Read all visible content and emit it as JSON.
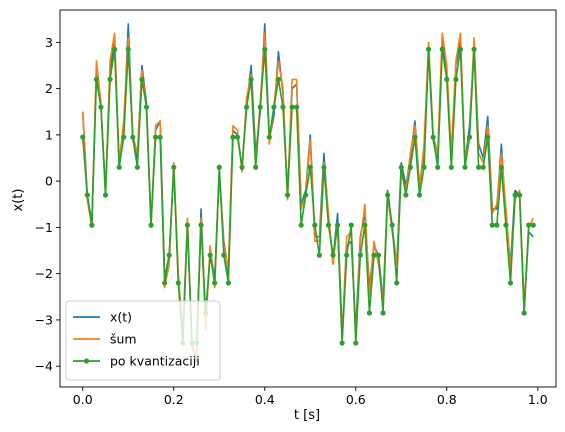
{
  "chart_data": {
    "type": "line",
    "xlabel": "t [s]",
    "ylabel": "x(t)",
    "xlim": [
      -0.05,
      1.04
    ],
    "ylim": [
      -4.45,
      3.7
    ],
    "xticks": [
      0.0,
      0.2,
      0.4,
      0.6,
      0.8,
      1.0
    ],
    "xtick_labels": [
      "0.0",
      "0.2",
      "0.4",
      "0.6",
      "0.8",
      "1.0"
    ],
    "yticks": [
      -4,
      -3,
      -2,
      -1,
      0,
      1,
      2,
      3
    ],
    "ytick_labels": [
      "−4",
      "−3",
      "−2",
      "−1",
      "0",
      "1",
      "2",
      "3"
    ],
    "grid": false,
    "legend_position": "bottom-left",
    "x": [
      0.0,
      0.01,
      0.02,
      0.03,
      0.04,
      0.05,
      0.06,
      0.07,
      0.08,
      0.09,
      0.1,
      0.11,
      0.12,
      0.13,
      0.14,
      0.15,
      0.16,
      0.17,
      0.18,
      0.19,
      0.2,
      0.21,
      0.22,
      0.23,
      0.24,
      0.25,
      0.26,
      0.27,
      0.28,
      0.29,
      0.3,
      0.31,
      0.32,
      0.33,
      0.34,
      0.35,
      0.36,
      0.37,
      0.38,
      0.39,
      0.4,
      0.41,
      0.42,
      0.43,
      0.44,
      0.45,
      0.46,
      0.47,
      0.48,
      0.49,
      0.5,
      0.51,
      0.52,
      0.53,
      0.54,
      0.55,
      0.56,
      0.57,
      0.58,
      0.59,
      0.6,
      0.61,
      0.62,
      0.63,
      0.64,
      0.65,
      0.66,
      0.67,
      0.68,
      0.69,
      0.7,
      0.71,
      0.72,
      0.73,
      0.74,
      0.75,
      0.76,
      0.77,
      0.78,
      0.79,
      0.8,
      0.81,
      0.82,
      0.83,
      0.84,
      0.85,
      0.86,
      0.87,
      0.88,
      0.89,
      0.9,
      0.91,
      0.92,
      0.93,
      0.94,
      0.95,
      0.96,
      0.97,
      0.98,
      0.99
    ],
    "series": [
      {
        "name": "x(t)",
        "color": "#1f77b4",
        "marker": "none",
        "values": [
          1.5,
          -0.3,
          -0.9,
          2.4,
          1.6,
          -0.2,
          2.4,
          3.0,
          0.3,
          1.1,
          3.4,
          0.9,
          0.5,
          2.5,
          1.7,
          -0.9,
          1.1,
          1.3,
          -2.1,
          -1.6,
          0.3,
          -2.1,
          -3.3,
          -0.9,
          -3.5,
          -3.9,
          -0.6,
          -3.1,
          -1.5,
          -2.1,
          0.2,
          -1.3,
          -2.0,
          1.1,
          1.0,
          0.3,
          1.6,
          2.5,
          0.6,
          1.5,
          3.4,
          0.9,
          1.4,
          2.8,
          1.9,
          -0.3,
          2.0,
          2.1,
          -0.5,
          -0.2,
          1.0,
          -1.2,
          -1.2,
          0.6,
          -0.8,
          -1.7,
          -0.7,
          -3.3,
          -1.4,
          -1.3,
          -3.2,
          -1.2,
          -0.7,
          -2.3,
          -1.4,
          -1.6,
          -2.6,
          -0.2,
          -1.0,
          -1.8,
          0.4,
          -0.1,
          0.5,
          1.3,
          -0.1,
          0.6,
          2.8,
          0.9,
          0.4,
          3.0,
          2.3,
          0.5,
          2.5,
          3.0,
          0.4,
          1.2,
          2.9,
          0.8,
          0.5,
          1.4,
          -0.6,
          -0.6,
          0.8,
          -0.8,
          -1.8,
          -0.2,
          -0.3,
          -2.8,
          -1.1,
          -1.2
        ]
      },
      {
        "name": "šum",
        "color": "#ff7f0e",
        "marker": "none",
        "values": [
          1.5,
          -0.4,
          -1.0,
          2.6,
          1.7,
          -0.3,
          2.6,
          3.2,
          0.4,
          1.3,
          3.1,
          1.0,
          0.6,
          2.4,
          1.6,
          -1.0,
          1.2,
          1.3,
          -2.3,
          -1.8,
          0.4,
          -2.0,
          -3.4,
          -0.8,
          -3.6,
          -3.8,
          -0.8,
          -3.2,
          -1.4,
          -2.3,
          0.2,
          -1.4,
          -1.9,
          1.2,
          1.1,
          0.2,
          1.8,
          2.3,
          0.4,
          1.7,
          3.2,
          0.8,
          1.6,
          2.6,
          2.0,
          -0.4,
          2.2,
          2.2,
          -0.6,
          -0.3,
          0.9,
          -1.3,
          -1.3,
          0.4,
          -0.7,
          -1.8,
          -0.9,
          -3.4,
          -1.2,
          -1.1,
          -3.4,
          -1.3,
          -0.5,
          -2.5,
          -1.3,
          -1.8,
          -2.6,
          -0.3,
          -1.1,
          -1.8,
          0.2,
          -0.2,
          0.6,
          1.2,
          -0.2,
          0.8,
          3.0,
          1.0,
          0.6,
          3.2,
          2.5,
          0.6,
          2.6,
          3.2,
          0.4,
          1.0,
          3.1,
          0.6,
          0.4,
          1.2,
          -0.7,
          -0.5,
          0.6,
          -0.6,
          -1.9,
          -0.4,
          -0.2,
          -2.7,
          -1.0,
          -0.8
        ]
      },
      {
        "name": "po kvantizaciji",
        "color": "#2ca02c",
        "marker": "circle",
        "values": [
          0.95,
          -0.3,
          -0.95,
          2.2,
          1.6,
          -0.3,
          2.2,
          2.85,
          0.3,
          0.95,
          2.85,
          0.95,
          0.3,
          2.2,
          1.6,
          -0.95,
          0.95,
          0.95,
          -2.2,
          -1.6,
          0.3,
          -2.2,
          -3.5,
          -0.95,
          -3.5,
          -3.5,
          -0.95,
          -2.85,
          -1.6,
          -2.2,
          0.3,
          -1.6,
          -2.2,
          0.95,
          0.95,
          0.3,
          1.6,
          2.2,
          0.3,
          1.6,
          2.85,
          0.95,
          1.6,
          2.2,
          1.6,
          -0.3,
          1.6,
          1.6,
          -0.95,
          -0.3,
          0.3,
          -0.95,
          -1.6,
          0.3,
          -0.95,
          -1.6,
          -0.95,
          -3.5,
          -1.6,
          -0.95,
          -3.5,
          -1.6,
          -0.95,
          -2.85,
          -1.6,
          -1.6,
          -2.85,
          -0.3,
          -0.95,
          -2.2,
          0.3,
          -0.3,
          0.3,
          0.95,
          -0.3,
          0.3,
          2.85,
          0.95,
          0.3,
          2.85,
          2.2,
          0.3,
          2.2,
          2.85,
          0.3,
          0.95,
          2.85,
          0.3,
          0.3,
          0.95,
          -0.95,
          -0.95,
          0.3,
          -0.95,
          -2.2,
          -0.3,
          -0.3,
          -2.85,
          -0.95,
          -0.95
        ]
      }
    ]
  }
}
